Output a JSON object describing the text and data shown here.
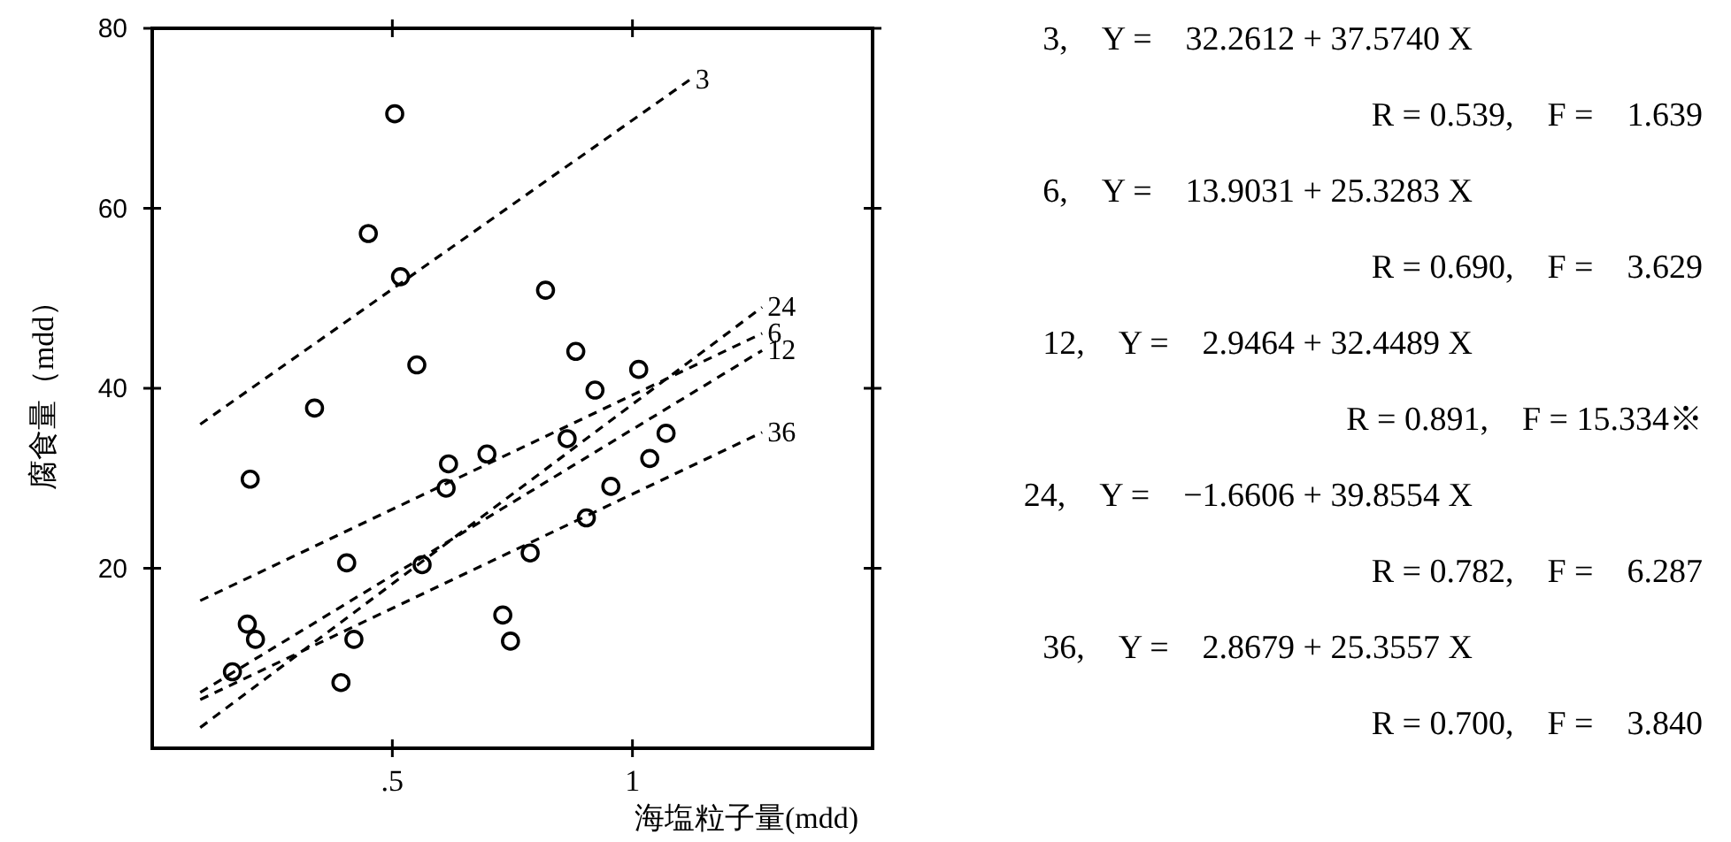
{
  "chart_data": {
    "type": "scatter",
    "xlabel": "海塩粒子量(mdd)",
    "ylabel": "腐食量（mdd）",
    "xlim": [
      0,
      1.5
    ],
    "ylim": [
      0,
      80
    ],
    "xticks": [
      {
        "value": 0.5,
        "label": ".5"
      },
      {
        "value": 1,
        "label": "1"
      }
    ],
    "yticks": [
      20,
      40,
      60,
      80
    ],
    "marker": "circle",
    "series": [
      {
        "color": "#000000",
        "x": [
          0.505,
          0.45,
          0.517,
          0.819,
          0.882,
          0.551,
          1.013,
          0.922,
          0.338,
          1.07,
          0.864,
          0.697,
          0.617,
          1.036,
          0.204,
          0.612,
          0.955,
          0.904,
          0.787,
          0.405,
          0.562,
          0.73,
          0.198,
          0.215,
          0.42,
          0.746,
          0.167,
          0.393
        ],
        "values": [
          70.5,
          57.2,
          52.4,
          50.9,
          44.1,
          42.6,
          42.1,
          39.8,
          37.8,
          35.0,
          34.4,
          32.7,
          31.6,
          32.2,
          29.9,
          28.9,
          29.1,
          25.6,
          21.7,
          20.6,
          20.4,
          14.8,
          13.8,
          12.1,
          12.1,
          11.9,
          8.5,
          7.3
        ]
      },
      {
        "type": "line",
        "name": "3",
        "color": "#000000",
        "marker": "none",
        "line_style": "dashed",
        "x": [
          0.1,
          1.12
        ],
        "values": [
          36.0,
          74.3
        ]
      },
      {
        "type": "line",
        "name": "24",
        "color": "#000000",
        "marker": "none",
        "line_style": "dashed",
        "x": [
          0.1,
          1.27
        ],
        "values": [
          2.3,
          49.0
        ]
      },
      {
        "type": "line",
        "name": "6",
        "color": "#000000",
        "marker": "none",
        "line_style": "dashed",
        "x": [
          0.1,
          1.27
        ],
        "values": [
          16.4,
          46.1
        ]
      },
      {
        "type": "line",
        "name": "12",
        "color": "#000000",
        "marker": "none",
        "line_style": "dashed",
        "x": [
          0.1,
          1.27
        ],
        "values": [
          6.2,
          44.2
        ]
      },
      {
        "type": "line",
        "name": "36",
        "color": "#000000",
        "marker": "none",
        "line_style": "dashed",
        "x": [
          0.1,
          1.27
        ],
        "values": [
          5.4,
          35.1
        ]
      }
    ],
    "annotations": [
      "3,　Y =　32.2612 + 37.5740 X",
      "R = 0.539,　F =　1.639",
      "6,　Y =　13.9031 + 25.3283 X",
      "R = 0.690,　F =　3.629",
      "12,　Y =　2.9464 + 32.4489 X",
      "R = 0.891,　F = 15.334※",
      "24,　Y =　−1.6606 + 39.8554 X",
      "R = 0.782,　F =　6.287",
      "36,　Y =　2.8679 + 25.3557 X",
      "R = 0.700,　F =　3.840"
    ]
  }
}
